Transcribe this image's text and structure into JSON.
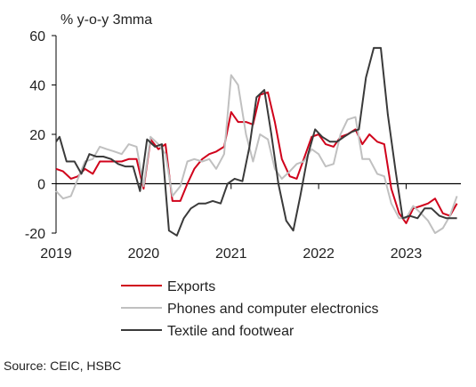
{
  "chart_data": {
    "type": "line",
    "ylabel": "% y-o-y 3mma",
    "ylim": [
      -20,
      60
    ],
    "yticks": [
      -20,
      0,
      20,
      40,
      60
    ],
    "xlim": [
      2019.0,
      2023.625
    ],
    "xticks": [
      {
        "label": "2019",
        "x": 2019.0
      },
      {
        "label": "2020",
        "x": 2020.0
      },
      {
        "label": "2021",
        "x": 2021.0
      },
      {
        "label": "2022",
        "x": 2022.0
      },
      {
        "label": "2023",
        "x": 2023.0
      }
    ],
    "grid": false,
    "legend": "bottom",
    "series": [
      {
        "name": "Exports",
        "color": "#d0021b",
        "points": [
          [
            2019.0,
            6
          ],
          [
            2019.08,
            5
          ],
          [
            2019.17,
            2
          ],
          [
            2019.25,
            3
          ],
          [
            2019.33,
            6
          ],
          [
            2019.42,
            4
          ],
          [
            2019.5,
            9
          ],
          [
            2019.58,
            9
          ],
          [
            2019.67,
            9
          ],
          [
            2019.75,
            9
          ],
          [
            2019.83,
            10
          ],
          [
            2019.92,
            10
          ],
          [
            2020.0,
            -2
          ],
          [
            2020.08,
            18
          ],
          [
            2020.17,
            14
          ],
          [
            2020.25,
            16
          ],
          [
            2020.33,
            -7
          ],
          [
            2020.42,
            -7
          ],
          [
            2020.5,
            0
          ],
          [
            2020.58,
            6
          ],
          [
            2020.67,
            10
          ],
          [
            2020.75,
            12
          ],
          [
            2020.83,
            13
          ],
          [
            2020.92,
            15
          ],
          [
            2021.0,
            29
          ],
          [
            2021.08,
            25
          ],
          [
            2021.17,
            25
          ],
          [
            2021.25,
            24
          ],
          [
            2021.33,
            36
          ],
          [
            2021.42,
            37
          ],
          [
            2021.5,
            25
          ],
          [
            2021.58,
            10
          ],
          [
            2021.67,
            3
          ],
          [
            2021.75,
            2
          ],
          [
            2021.83,
            10
          ],
          [
            2021.92,
            19
          ],
          [
            2022.0,
            20
          ],
          [
            2022.08,
            16
          ],
          [
            2022.17,
            15
          ],
          [
            2022.25,
            19
          ],
          [
            2022.33,
            20
          ],
          [
            2022.42,
            22
          ],
          [
            2022.5,
            16
          ],
          [
            2022.58,
            20
          ],
          [
            2022.67,
            17
          ],
          [
            2022.75,
            16
          ],
          [
            2022.83,
            -2
          ],
          [
            2022.92,
            -12
          ],
          [
            2023.0,
            -16
          ],
          [
            2023.08,
            -10
          ],
          [
            2023.17,
            -9
          ],
          [
            2023.25,
            -8
          ],
          [
            2023.33,
            -6
          ],
          [
            2023.42,
            -12
          ],
          [
            2023.5,
            -13
          ],
          [
            2023.58,
            -8
          ]
        ]
      },
      {
        "name": "Phones and computer electronics",
        "color": "#c0c0c0",
        "points": [
          [
            2019.0,
            -3
          ],
          [
            2019.08,
            -6
          ],
          [
            2019.17,
            -5
          ],
          [
            2019.25,
            2
          ],
          [
            2019.33,
            9
          ],
          [
            2019.42,
            10
          ],
          [
            2019.5,
            15
          ],
          [
            2019.58,
            14
          ],
          [
            2019.67,
            13
          ],
          [
            2019.75,
            12
          ],
          [
            2019.83,
            16
          ],
          [
            2019.92,
            15
          ],
          [
            2020.0,
            -1
          ],
          [
            2020.08,
            19
          ],
          [
            2020.17,
            16
          ],
          [
            2020.25,
            12
          ],
          [
            2020.33,
            -5
          ],
          [
            2020.42,
            -1
          ],
          [
            2020.5,
            9
          ],
          [
            2020.58,
            10
          ],
          [
            2020.67,
            9
          ],
          [
            2020.75,
            10
          ],
          [
            2020.83,
            6
          ],
          [
            2020.92,
            12
          ],
          [
            2021.0,
            44
          ],
          [
            2021.08,
            40
          ],
          [
            2021.17,
            20
          ],
          [
            2021.25,
            9
          ],
          [
            2021.33,
            20
          ],
          [
            2021.42,
            18
          ],
          [
            2021.5,
            6
          ],
          [
            2021.58,
            2
          ],
          [
            2021.67,
            5
          ],
          [
            2021.75,
            8
          ],
          [
            2021.83,
            9
          ],
          [
            2021.92,
            14
          ],
          [
            2022.0,
            12
          ],
          [
            2022.08,
            7
          ],
          [
            2022.17,
            8
          ],
          [
            2022.25,
            20
          ],
          [
            2022.33,
            26
          ],
          [
            2022.42,
            27
          ],
          [
            2022.5,
            10
          ],
          [
            2022.58,
            10
          ],
          [
            2022.67,
            4
          ],
          [
            2022.75,
            3
          ],
          [
            2022.83,
            -8
          ],
          [
            2022.92,
            -14
          ],
          [
            2023.0,
            -14
          ],
          [
            2023.08,
            -9
          ],
          [
            2023.17,
            -12
          ],
          [
            2023.25,
            -15
          ],
          [
            2023.33,
            -20
          ],
          [
            2023.42,
            -18
          ],
          [
            2023.5,
            -13
          ],
          [
            2023.58,
            -5
          ]
        ]
      },
      {
        "name": "Textile and footwear",
        "color": "#3a3a3a",
        "points": [
          [
            2019.0,
            17
          ],
          [
            2019.04,
            19
          ],
          [
            2019.12,
            9
          ],
          [
            2019.21,
            9
          ],
          [
            2019.29,
            4
          ],
          [
            2019.38,
            12
          ],
          [
            2019.46,
            11
          ],
          [
            2019.54,
            11
          ],
          [
            2019.63,
            10
          ],
          [
            2019.71,
            8
          ],
          [
            2019.79,
            7
          ],
          [
            2019.88,
            7
          ],
          [
            2019.96,
            -3
          ],
          [
            2020.04,
            18
          ],
          [
            2020.13,
            15
          ],
          [
            2020.21,
            16
          ],
          [
            2020.29,
            -19
          ],
          [
            2020.38,
            -21
          ],
          [
            2020.46,
            -14
          ],
          [
            2020.54,
            -10
          ],
          [
            2020.63,
            -8
          ],
          [
            2020.71,
            -8
          ],
          [
            2020.79,
            -7
          ],
          [
            2020.88,
            -8
          ],
          [
            2020.96,
            0
          ],
          [
            2021.04,
            2
          ],
          [
            2021.13,
            1
          ],
          [
            2021.21,
            15
          ],
          [
            2021.29,
            35
          ],
          [
            2021.38,
            38
          ],
          [
            2021.46,
            20
          ],
          [
            2021.54,
            0
          ],
          [
            2021.63,
            -15
          ],
          [
            2021.71,
            -19
          ],
          [
            2021.79,
            -5
          ],
          [
            2021.88,
            12
          ],
          [
            2021.96,
            22
          ],
          [
            2022.04,
            19
          ],
          [
            2022.13,
            17
          ],
          [
            2022.21,
            17
          ],
          [
            2022.29,
            19
          ],
          [
            2022.38,
            21
          ],
          [
            2022.46,
            22
          ],
          [
            2022.54,
            43
          ],
          [
            2022.63,
            55
          ],
          [
            2022.71,
            55
          ],
          [
            2022.79,
            28
          ],
          [
            2022.88,
            5
          ],
          [
            2022.96,
            -14
          ],
          [
            2023.04,
            -13
          ],
          [
            2023.13,
            -14
          ],
          [
            2023.21,
            -10
          ],
          [
            2023.29,
            -10
          ],
          [
            2023.38,
            -13
          ],
          [
            2023.46,
            -14
          ],
          [
            2023.54,
            -14
          ],
          [
            2023.58,
            -14
          ]
        ]
      }
    ]
  },
  "source": "Source: CEIC, HSBC"
}
